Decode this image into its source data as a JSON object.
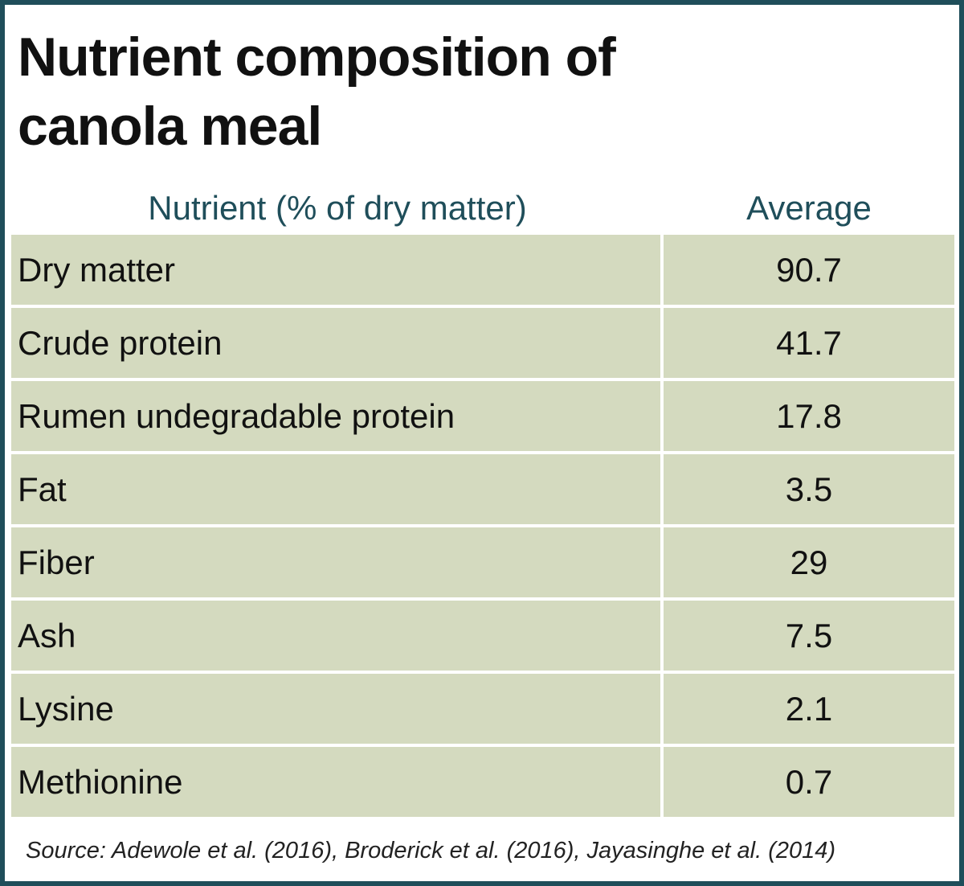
{
  "title": "Nutrient composition of canola meal",
  "table": {
    "header": [
      "Nutrient (% of dry matter)",
      "Average"
    ],
    "rows": [
      [
        "Dry matter",
        90.7
      ],
      [
        "Crude protein",
        41.7
      ],
      [
        "Rumen undegradable protein",
        17.8
      ],
      [
        "Fat",
        3.5
      ],
      [
        "Fiber",
        29
      ],
      [
        "Ash",
        7.5
      ],
      [
        "Lysine",
        2.1
      ],
      [
        "Methionine",
        0.7
      ]
    ]
  },
  "source": "Source: Adewole et al. (2016), Broderick et al. (2016), Jayasinghe et al. (2014)"
}
